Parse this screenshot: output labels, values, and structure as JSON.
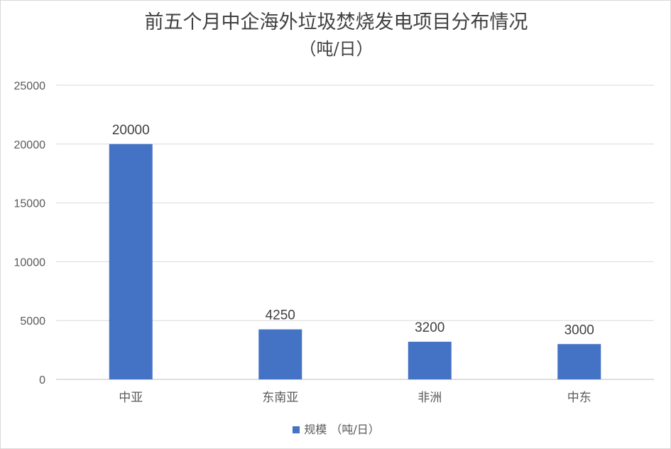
{
  "chart_data": {
    "type": "bar",
    "title": "前五个月中企海外垃圾焚烧发电项目分布情况",
    "subtitle": "（吨/日）",
    "categories": [
      "中亚",
      "东南亚",
      "非洲",
      "中东"
    ],
    "series": [
      {
        "name": "规模 （吨/日）",
        "values": [
          20000,
          4250,
          3200,
          3000
        ],
        "color": "#4472c4"
      }
    ],
    "ylim": [
      0,
      25000
    ],
    "yticks": [
      "0",
      "5000",
      "10000",
      "15000",
      "20000",
      "25000"
    ],
    "data_labels": [
      "20000",
      "4250",
      "3200",
      "3000"
    ],
    "grid": true,
    "legend_position": "bottom"
  }
}
